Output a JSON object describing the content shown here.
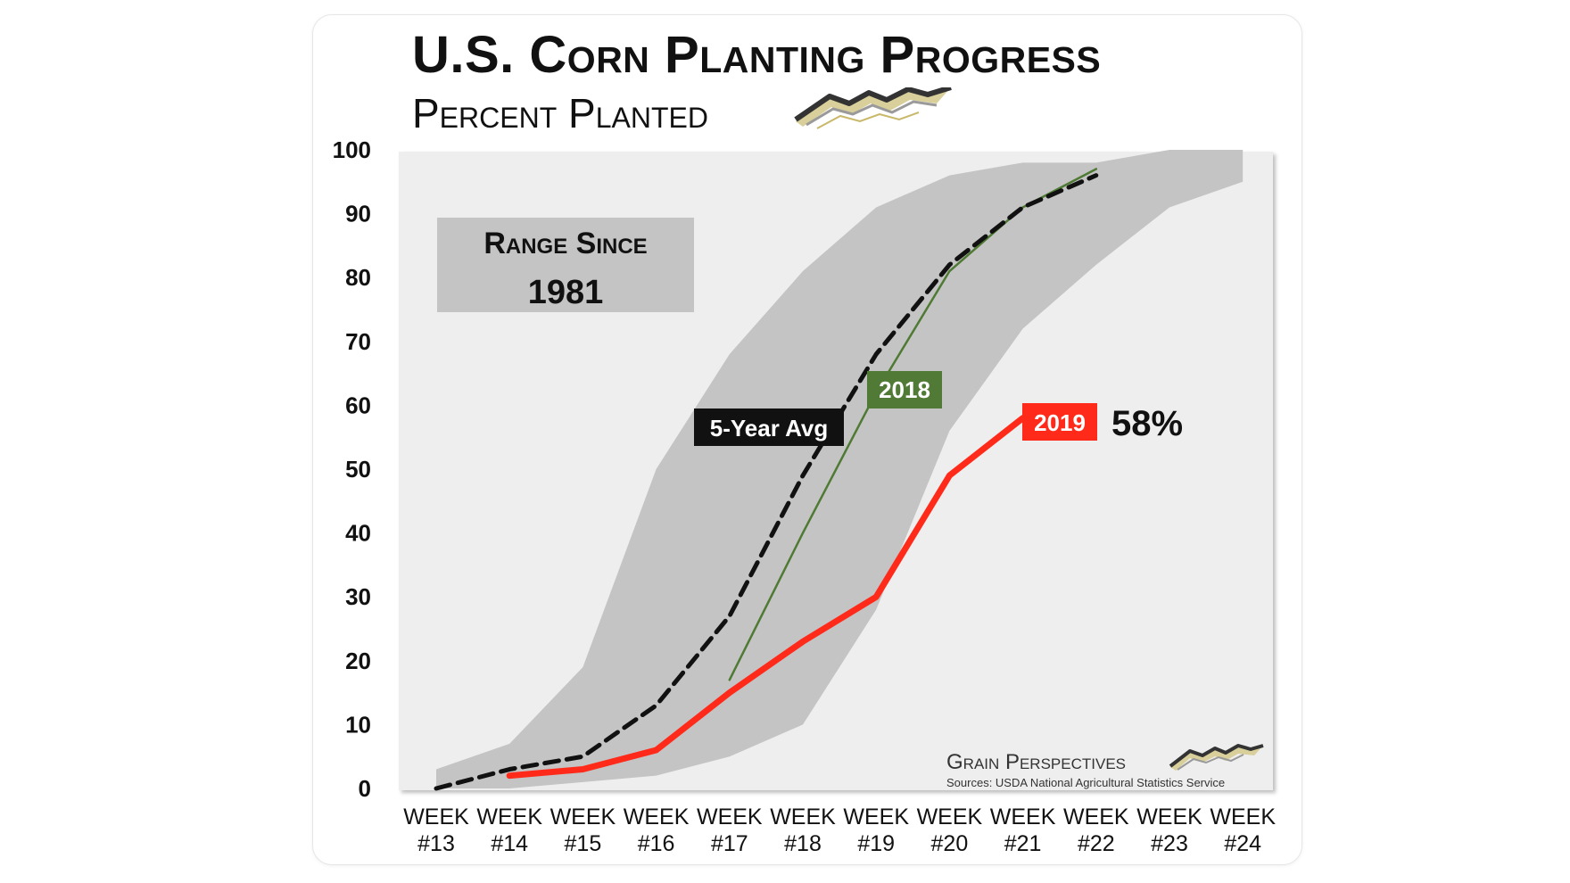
{
  "header": {
    "title": "U.S. Corn Planting Progress",
    "subtitle": "Percent Planted"
  },
  "chart_data": {
    "type": "line",
    "title": "U.S. Corn Planting Progress",
    "subtitle": "Percent Planted",
    "xlabel": "",
    "ylabel": "",
    "ylim": [
      0,
      100
    ],
    "y_ticks": [
      "0",
      "10",
      "20",
      "30",
      "40",
      "50",
      "60",
      "70",
      "80",
      "90",
      "100"
    ],
    "categories": [
      [
        "WEEK",
        "#13"
      ],
      [
        "WEEK",
        "#14"
      ],
      [
        "WEEK",
        "#15"
      ],
      [
        "WEEK",
        "#16"
      ],
      [
        "WEEK",
        "#17"
      ],
      [
        "WEEK",
        "#18"
      ],
      [
        "WEEK",
        "#19"
      ],
      [
        "WEEK",
        "#20"
      ],
      [
        "WEEK",
        "#21"
      ],
      [
        "WEEK",
        "#22"
      ],
      [
        "WEEK",
        "#23"
      ],
      [
        "WEEK",
        "#24"
      ]
    ],
    "range_band": {
      "label_line1": "Range Since",
      "label_line2": "1981",
      "upper": [
        3,
        7,
        19,
        50,
        68,
        81,
        91,
        96,
        98,
        98,
        100,
        100
      ],
      "lower": [
        0,
        0,
        1,
        2,
        5,
        10,
        28,
        56,
        72,
        82,
        91,
        95
      ]
    },
    "series": [
      {
        "name": "5-Year Avg",
        "values": [
          0,
          3,
          5,
          13,
          27,
          49,
          68,
          82,
          91,
          96,
          null,
          null
        ]
      },
      {
        "name": "2018",
        "values": [
          null,
          null,
          null,
          null,
          17,
          40,
          62,
          81,
          91,
          97,
          null,
          null
        ]
      },
      {
        "name": "2019",
        "values": [
          null,
          2,
          3,
          6,
          15,
          23,
          30,
          49,
          58,
          null,
          null,
          null
        ]
      }
    ],
    "annotations": {
      "latest_value": "58%"
    },
    "colors": {
      "band": "#c4c4c4",
      "plot_background": "#eeeeee",
      "five_year_avg": "#111111",
      "y2018": "#4f7a34",
      "y2019": "#ff2a1a",
      "label_2019_bg": "#ff2a1a",
      "label_2018_bg": "#507a35",
      "label_avg_bg": "#111111"
    }
  },
  "footer": {
    "brand": "Grain Perspectives",
    "sources": "Sources: USDA National Agricultural Statistics Service"
  }
}
